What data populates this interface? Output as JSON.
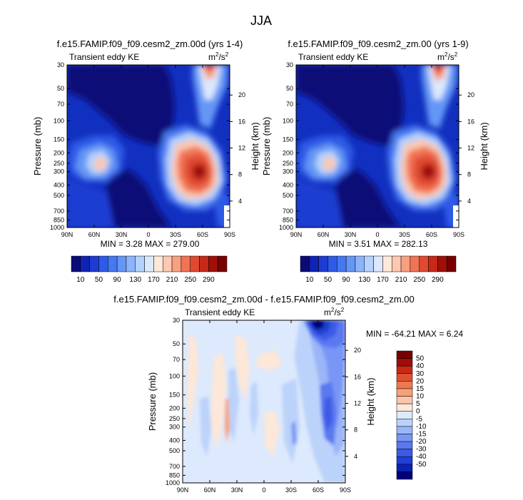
{
  "figure_title": "JJA",
  "palettes": {
    "kelvin": [
      "#0a0a78",
      "#0f23b4",
      "#1e3cd2",
      "#2d5ae6",
      "#4678f0",
      "#6496f5",
      "#8cb4f8",
      "#b4d2fc",
      "#dce9fd",
      "#fde9d9",
      "#fcc8b0",
      "#f8a082",
      "#f07355",
      "#e04a30",
      "#c82818",
      "#a01008",
      "#780000"
    ],
    "diff": [
      "#000078",
      "#0a23b4",
      "#1e41d2",
      "#3c5ae6",
      "#5a78f0",
      "#7896f5",
      "#9bb5f8",
      "#bbd3fa",
      "#dde9fc",
      "#fde7d8",
      "#fcc5a8",
      "#f9a078",
      "#f07850",
      "#e05030",
      "#c82818",
      "#a00c08",
      "#780000"
    ]
  },
  "labels": {
    "min_text_1": "MIN =  3.28  MAX = 279.00",
    "min_text_2": "MIN =  3.51  MAX = 282.13",
    "min_text_3": "MIN = -64.21  MAX =  6.24"
  },
  "chart_data": [
    {
      "type": "heatmap",
      "title": "f.e15.FAMIP.f09_f09.cesm2_zm.00d (yrs 1-4)",
      "subtitle_left": "Transient eddy KE",
      "units": "m²/s²",
      "xlabel": "",
      "ylabel": "Pressure (mb)",
      "ylabel_right": "Height (km)",
      "x_ticks": [
        "90N",
        "60N",
        "30N",
        "0",
        "30S",
        "60S",
        "90S"
      ],
      "y_ticks": [
        30,
        50,
        70,
        100,
        150,
        200,
        250,
        300,
        400,
        500,
        700,
        850,
        1000
      ],
      "height_ticks": [
        4,
        8,
        12,
        16,
        20
      ],
      "min": 3.28,
      "max": 279.0,
      "colorbar_labels": [
        10,
        50,
        90,
        130,
        170,
        210,
        250,
        290
      ],
      "features": [
        {
          "x": 0.2,
          "p": 250,
          "value": 150
        },
        {
          "x": 0.72,
          "p": 275,
          "value": 279
        },
        {
          "x": 0.85,
          "p": 35,
          "value": 200
        }
      ]
    },
    {
      "type": "heatmap",
      "title": "f.e15.FAMIP.f09_f09.cesm2_zm.00 (yrs 1-9)",
      "subtitle_left": "Transient eddy KE",
      "units": "m²/s²",
      "xlabel": "",
      "ylabel": "Pressure (mb)",
      "ylabel_right": "Height (km)",
      "x_ticks": [
        "90N",
        "60N",
        "30N",
        "0",
        "30S",
        "60S",
        "90S"
      ],
      "y_ticks": [
        30,
        50,
        70,
        100,
        150,
        200,
        250,
        300,
        400,
        500,
        700,
        850,
        1000
      ],
      "height_ticks": [
        4,
        8,
        12,
        16,
        20
      ],
      "min": 3.51,
      "max": 282.13,
      "colorbar_labels": [
        10,
        50,
        90,
        130,
        170,
        210,
        250,
        290
      ],
      "features": [
        {
          "x": 0.2,
          "p": 250,
          "value": 150
        },
        {
          "x": 0.72,
          "p": 275,
          "value": 282
        },
        {
          "x": 0.85,
          "p": 35,
          "value": 210
        }
      ]
    },
    {
      "type": "heatmap",
      "title": "f.e15.FAMIP.f09_f09.cesm2_zm.00d - f.e15.FAMIP.f09_f09.cesm2_zm.00",
      "subtitle_left": "Transient eddy KE",
      "units": "m²/s²",
      "xlabel": "",
      "ylabel": "Pressure (mb)",
      "ylabel_right": "Height (km)",
      "x_ticks": [
        "90N",
        "60N",
        "30N",
        "0",
        "30S",
        "60S",
        "90S"
      ],
      "y_ticks": [
        30,
        50,
        70,
        100,
        150,
        200,
        250,
        300,
        400,
        500,
        700,
        850,
        1000
      ],
      "height_ticks": [
        4,
        8,
        12,
        16,
        20
      ],
      "min": -64.21,
      "max": 6.24,
      "colorbar_labels": [
        50,
        40,
        30,
        20,
        15,
        10,
        5,
        0,
        -5,
        -10,
        -15,
        -20,
        -30,
        -40,
        -50
      ],
      "features": [
        {
          "x": 0.8,
          "p": 35,
          "value": -64
        },
        {
          "x": 0.92,
          "p": 300,
          "value": -30
        }
      ]
    }
  ]
}
